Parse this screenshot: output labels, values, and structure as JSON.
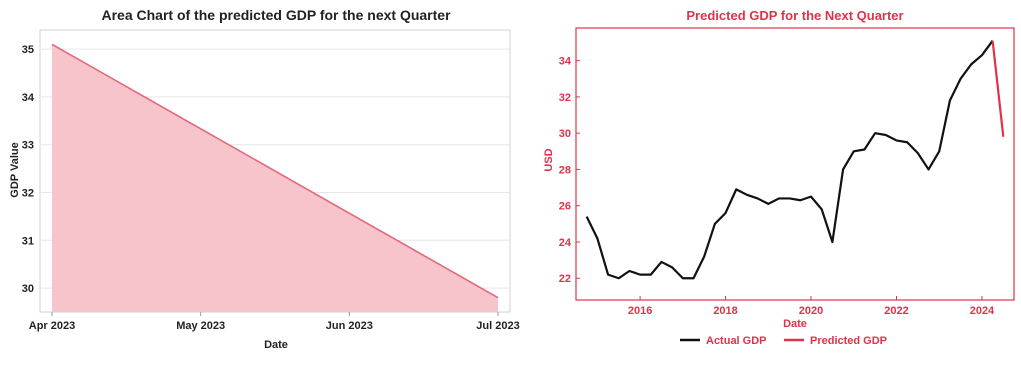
{
  "chart_data": [
    {
      "type": "area",
      "title": "Area Chart of the predicted GDP for the next Quarter",
      "xlabel": "Date",
      "ylabel": "GDP Value",
      "x": [
        "2023-04-01",
        "2023-07-01"
      ],
      "values": [
        35.1,
        29.8
      ],
      "x_tick_labels": [
        "Apr 2023",
        "May 2023",
        "Jun 2023",
        "Jul 2023"
      ],
      "y_ticks": [
        30,
        31,
        32,
        33,
        34,
        35
      ],
      "ylim": [
        29.5,
        35.4
      ],
      "grid": true,
      "colors": {
        "line": "#e06a7a",
        "fill": "#f7c4cc",
        "text": "#222222",
        "grid": "#e6e6e6"
      }
    },
    {
      "type": "line",
      "title": "Predicted GDP for the Next Quarter",
      "xlabel": "Date",
      "ylabel": "USD",
      "x_tick_labels": [
        "2016",
        "2018",
        "2020",
        "2022",
        "2024"
      ],
      "y_ticks": [
        22,
        24,
        26,
        28,
        30,
        32,
        34
      ],
      "xlim": [
        2014.5,
        2024.75
      ],
      "ylim": [
        20.8,
        35.8
      ],
      "legend_placement": "bottom",
      "series": [
        {
          "name": "Actual GDP",
          "color": "#111111",
          "x": [
            2014.75,
            2015.0,
            2015.25,
            2015.5,
            2015.75,
            2016.0,
            2016.25,
            2016.5,
            2016.75,
            2017.0,
            2017.25,
            2017.5,
            2017.75,
            2018.0,
            2018.25,
            2018.5,
            2018.75,
            2019.0,
            2019.25,
            2019.5,
            2019.75,
            2020.0,
            2020.25,
            2020.5,
            2020.75,
            2021.0,
            2021.25,
            2021.5,
            2021.75,
            2022.0,
            2022.25,
            2022.5,
            2022.75,
            2023.0,
            2023.25,
            2023.5,
            2023.75,
            2024.0,
            2024.25
          ],
          "values": [
            25.4,
            24.2,
            22.2,
            22.0,
            22.4,
            22.2,
            22.2,
            22.9,
            22.6,
            22.0,
            22.0,
            23.2,
            25.0,
            25.6,
            26.9,
            26.6,
            26.4,
            26.1,
            26.4,
            26.4,
            26.3,
            26.5,
            25.8,
            24.0,
            28.0,
            29.0,
            29.1,
            30.0,
            29.9,
            29.6,
            29.5,
            28.9,
            28.0,
            29.0,
            31.8,
            33.0,
            33.8,
            34.3,
            35.1
          ]
        },
        {
          "name": "Predicted GDP",
          "color": "#e0324a",
          "x": [
            2024.25,
            2024.5
          ],
          "values": [
            35.1,
            29.8
          ]
        }
      ],
      "colors": {
        "text": "#e0324a",
        "frame": "#e0324a"
      }
    }
  ]
}
